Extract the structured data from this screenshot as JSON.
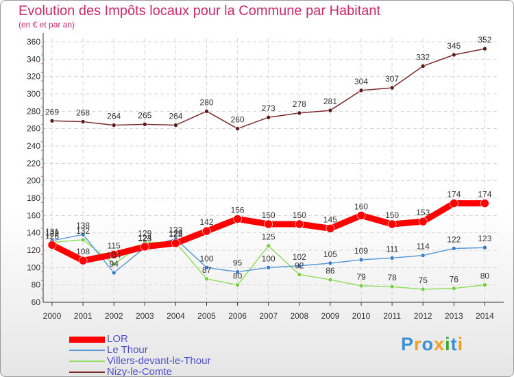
{
  "title": "Evolution des Impôts locaux pour la Commune par Habitant",
  "subtitle": "(en € et par an)",
  "brand": {
    "letters": [
      "P",
      "r",
      "o",
      "x",
      "i",
      "t",
      "i"
    ],
    "colors": [
      "#3a8fd8",
      "#f0a020",
      "#3a8fd8",
      "#f0a020",
      "#3aa83a",
      "#3a8fd8",
      "#f0a020"
    ]
  },
  "chart_data": {
    "type": "line",
    "x": [
      "2000",
      "2001",
      "2002",
      "2003",
      "2004",
      "2005",
      "2006",
      "2007",
      "2008",
      "2009",
      "2010",
      "2011",
      "2012",
      "2013",
      "2014"
    ],
    "ylim": [
      60,
      360
    ],
    "yticks": [
      60,
      80,
      100,
      120,
      140,
      160,
      180,
      200,
      220,
      240,
      260,
      280,
      300,
      320,
      340,
      360
    ],
    "grid": true,
    "legend_position": "bottom-left",
    "series": [
      {
        "name": "LOR",
        "color": "#ff0000",
        "values": [
          126,
          108,
          115,
          124,
          128,
          142,
          156,
          150,
          150,
          145,
          160,
          150,
          153,
          174,
          174
        ]
      },
      {
        "name": "Le Thour",
        "color": "#5a9ad8",
        "values": [
          131,
          138,
          94,
          123,
          133,
          100,
          95,
          100,
          102,
          105,
          109,
          111,
          114,
          122,
          123
        ]
      },
      {
        "name": "Villers-devant-le-Thour",
        "color": "#90dd60",
        "values": [
          129,
          132,
          104,
          129,
          129,
          87,
          80,
          125,
          92,
          86,
          79,
          78,
          75,
          76,
          80
        ]
      },
      {
        "name": "Nizy-le-Comte",
        "color": "#7a2a2a",
        "values": [
          269,
          268,
          264,
          265,
          264,
          280,
          260,
          273,
          278,
          281,
          304,
          307,
          332,
          345,
          352
        ]
      }
    ]
  }
}
